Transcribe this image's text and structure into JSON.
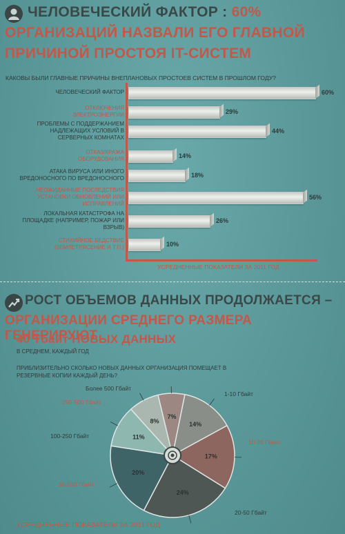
{
  "section1": {
    "title_part1": "ЧЕЛОВЕЧЕСКИЙ ФАКТОР :",
    "title_pct": "60%",
    "title_line2": "ОРГАНИЗАЦИЙ НАЗВАЛИ ЕГО ГЛАВНОЙ",
    "title_line3": "ПРИЧИНОЙ ПРОСТОЯ IT-СИСТЕМ",
    "question": "Каковы были главные причины внеплановых простоев систем в прошлом году?",
    "footer": "УСРЕДНЕННЫЕ ПОКАЗАТЕЛИ ЗА 2011 ГОД",
    "icon": "person-icon"
  },
  "section2": {
    "title_line1": "РОСТ ОБЪЕМОВ ДАННЫХ ПРОДОЛЖАЕТСЯ –",
    "title_line2": "ОРГАНИЗАЦИИ СРЕДНЕГО РАЗМЕРА ГЕНЕРИРУЮТ",
    "title_line3": "40 Тбайт НОВЫХ ДАННЫХ",
    "subtitle": "В СРЕДНЕМ, КАЖДЫЙ ГОД",
    "question": "ПРИБЛИЗИТЕЛЬНО СКОЛЬКО НОВЫХ ДАННЫХ ОРГАНИЗАЦИЯ ПОМЕЩАЕТ В РЕЗЕРВНЫЕ КОПИИ КАЖДЫЙ ДЕНЬ?",
    "footer": "УСРЕДНЕННЫЕ ПОКАЗАТЕЛИ ЗА 2011 ГОД",
    "icon": "growth-chart-icon"
  },
  "colors": {
    "accent_red": "#c2584a",
    "dark_text": "#3a4848",
    "bg_teal": "#5f9ea0"
  },
  "chart_data": [
    {
      "type": "bar",
      "orientation": "horizontal",
      "categories": [
        "ЧЕЛОВЕЧЕСКИЙ ФАКТОР",
        "ОТКЛЮЧЕНИЯ ЭЛЕКТРОЭНЕРГИИ",
        "ПРОБЛЕМЫ С ПОДДЕРЖАНИЕМ НАДЛЕЖАЩИХ УСЛОВИЙ В СЕРВЕРНЫХ КОМНАТАХ",
        "ОТКАЗ/КРАЖА ОБОРУДОВАНИЯ",
        "АТАКА ВИРУСА ИЛИ ИНОГО ВРЕДОНОСНОГО ПО ВРЕДОНОСНОГО",
        "НЕОЖИДАННЫЕ ПОСЛЕДСТВИЯ УСТАНОВКИ ОБНОВЛЕНИЙ ИЛИ ИСПРАВЛЕНИЙ",
        "ЛОКАЛЬНАЯ КАТАСТРОФА НА ПЛОЩАДКЕ (НАПРИМЕР, ПОЖАР ИЛИ ВЗРЫВ)",
        "СТИХИЙНОЕ БЕДСТВИЕ (ЗЕМЛЕТРЯСЕНИЕ И Т.П.)"
      ],
      "label_lines": [
        [
          "ЧЕЛОВЕЧЕСКИЙ ФАКТОР"
        ],
        [
          "ОТКЛЮЧЕНИЯ",
          "ЭЛЕКТРОЭНЕРГИИ"
        ],
        [
          "ПРОБЛЕМЫ С ПОДДЕРЖАНИЕМ",
          "НАДЛЕЖАЩИХ УСЛОВИЙ В",
          "СЕРВЕРНЫХ КОМНАТАХ"
        ],
        [
          "ОТКАЗ/КРАЖА",
          "ОБОРУДОВАНИЯ"
        ],
        [
          "АТАКА ВИРУСА ИЛИ ИНОГО",
          "ВРЕДОНОСНОГО ПО ВРЕДОНОСНОГО"
        ],
        [
          "НЕОЖИДАННЫЕ ПОСЛЕДСТВИЯ",
          "УСТАНОВКИ ОБНОВЛЕНИЙ ИЛИ",
          "ИСПРАВЛЕНИЙ"
        ],
        [
          "ЛОКАЛЬНАЯ КАТАСТРОФА НА",
          "ПЛОЩАДКЕ (НАПРИМЕР, ПОЖАР ИЛИ",
          "ВЗРЫВ)"
        ],
        [
          "СТИХИЙНОЕ БЕДСТВИЕ",
          "(ЗЕМЛЕТРЯСЕНИЕ И Т.П.)"
        ]
      ],
      "label_red": [
        false,
        true,
        false,
        true,
        false,
        true,
        false,
        true
      ],
      "values": [
        60,
        29,
        44,
        14,
        18,
        56,
        26,
        10
      ],
      "value_labels": [
        "60%",
        "29%",
        "44%",
        "14%",
        "18%",
        "56%",
        "26%",
        "10%"
      ],
      "title": "Каковы были главные причины внеплановых простоев систем в прошлом году?",
      "xlim": [
        0,
        60
      ]
    },
    {
      "type": "pie",
      "categories": [
        "1-10 Гбайт",
        "10-20 Гбайт",
        "20-50 Гбайт",
        "50-100 Гбайт",
        "100-250 Гбайт",
        "250-500 Тбайт",
        "Более 500 Гбайт"
      ],
      "values": [
        14,
        17,
        24,
        20,
        11,
        8,
        7
      ],
      "value_labels": [
        "14%",
        "17%",
        "24%",
        "20%",
        "11%",
        "8%",
        "7%"
      ],
      "label_red": [
        false,
        true,
        false,
        true,
        false,
        true,
        false
      ],
      "slice_colors": [
        "#8a8e89",
        "#8d6660",
        "#4e5753",
        "#3f6468",
        "#8eb7b0",
        "#aab6b0",
        "#9c8782"
      ]
    }
  ]
}
